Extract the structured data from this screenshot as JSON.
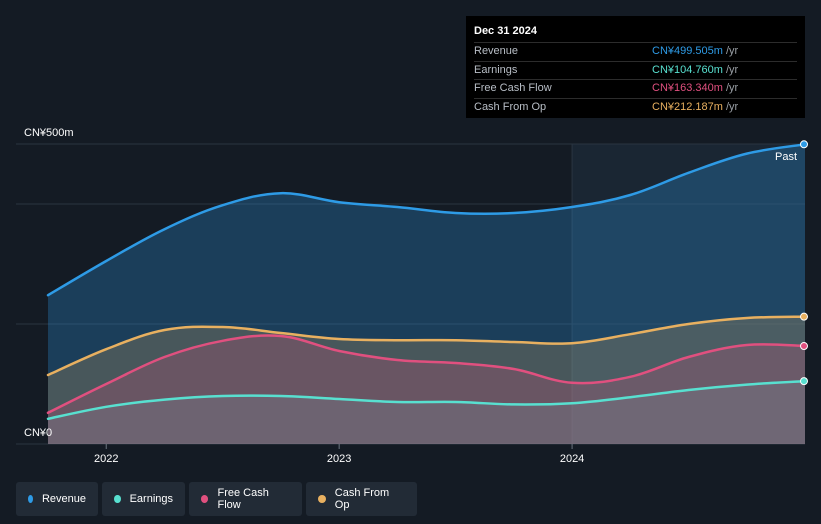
{
  "tooltip": {
    "date": "Dec 31 2024",
    "rows": [
      {
        "label": "Revenue",
        "value": "CN¥499.505m",
        "unit": "/yr",
        "color": "#2e9be6"
      },
      {
        "label": "Earnings",
        "value": "CN¥104.760m",
        "unit": "/yr",
        "color": "#58e0d0"
      },
      {
        "label": "Free Cash Flow",
        "value": "CN¥163.340m",
        "unit": "/yr",
        "color": "#e0507f"
      },
      {
        "label": "Cash From Op",
        "value": "CN¥212.187m",
        "unit": "/yr",
        "color": "#e8b060"
      }
    ]
  },
  "legend": [
    {
      "label": "Revenue",
      "color": "#2e9be6"
    },
    {
      "label": "Earnings",
      "color": "#58e0d0"
    },
    {
      "label": "Free Cash Flow",
      "color": "#e0507f"
    },
    {
      "label": "Cash From Op",
      "color": "#e8b060"
    }
  ],
  "chart_data": {
    "type": "area",
    "title": "",
    "xlabel": "",
    "ylabel": "",
    "x": [
      2021.75,
      2022.0,
      2022.25,
      2022.5,
      2022.75,
      2023.0,
      2023.25,
      2023.5,
      2023.75,
      2024.0,
      2024.25,
      2024.5,
      2024.75,
      2025.0
    ],
    "xlim": [
      2021.75,
      2025.0
    ],
    "ylim": [
      0,
      500
    ],
    "x_ticks": [
      {
        "value": 2022.0,
        "label": "2022"
      },
      {
        "value": 2023.0,
        "label": "2023"
      },
      {
        "value": 2024.0,
        "label": "2024"
      }
    ],
    "y_ticks": [
      {
        "value": 500,
        "label": "CN¥500m"
      },
      {
        "value": 0,
        "label": "CN¥0"
      }
    ],
    "gridlines": [
      0,
      200,
      400,
      500
    ],
    "past_start": 2024.0,
    "past_label": "Past",
    "series": [
      {
        "name": "Revenue",
        "color": "#2e9be6",
        "values": [
          248,
          305,
          358,
          398,
          418,
          403,
          395,
          385,
          385,
          395,
          415,
          452,
          484,
          499.5
        ]
      },
      {
        "name": "Cash From Op",
        "color": "#e8b060",
        "values": [
          115,
          158,
          190,
          195,
          185,
          175,
          173,
          173,
          170,
          168,
          183,
          200,
          210,
          212.2
        ]
      },
      {
        "name": "Free Cash Flow",
        "color": "#e0507f",
        "values": [
          52,
          100,
          145,
          172,
          180,
          155,
          140,
          135,
          125,
          102,
          112,
          145,
          165,
          163.3
        ]
      },
      {
        "name": "Earnings",
        "color": "#58e0d0",
        "values": [
          42,
          62,
          74,
          80,
          80,
          75,
          70,
          70,
          66,
          68,
          78,
          90,
          99,
          104.8
        ]
      }
    ]
  }
}
